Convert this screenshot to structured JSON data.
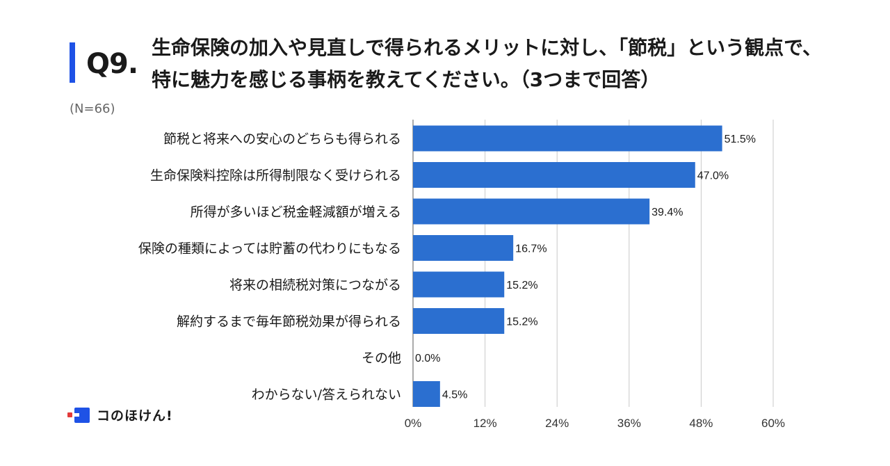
{
  "question": {
    "number": "Q9.",
    "title": "生命保険の加入や見直しで得られるメリットに対し、「節税」という観点で、\n特に魅力を感じる事柄を教えてください。（3つまで回答）",
    "sample_size": "(N=66)"
  },
  "brand": {
    "name": "コのほけん!"
  },
  "colors": {
    "accent": "#1e52e6",
    "bar": "#2b6fd0",
    "grid": "#c8c8c8",
    "brand_dot": "#e23b3b"
  },
  "chart_data": {
    "type": "bar",
    "orientation": "horizontal",
    "categories": [
      "節税と将来への安心のどちらも得られる",
      "生命保険料控除は所得制限なく受けられる",
      "所得が多いほど税金軽減額が増える",
      "保険の種類によっては貯蓄の代わりにもなる",
      "将来の相続税対策につながる",
      "解約するまで毎年節税効果が得られる",
      "その他",
      "わからない/答えられない"
    ],
    "values": [
      51.5,
      47.0,
      39.4,
      16.7,
      15.2,
      15.2,
      0.0,
      4.5
    ],
    "value_labels": [
      "51.5%",
      "47.0%",
      "39.4%",
      "16.7%",
      "15.2%",
      "15.2%",
      "0.0%",
      "4.5%"
    ],
    "xlim": [
      0,
      60
    ],
    "xticks": [
      0,
      12,
      24,
      36,
      48,
      60
    ],
    "xtick_labels": [
      "0%",
      "12%",
      "24%",
      "36%",
      "48%",
      "60%"
    ],
    "grid": true
  }
}
